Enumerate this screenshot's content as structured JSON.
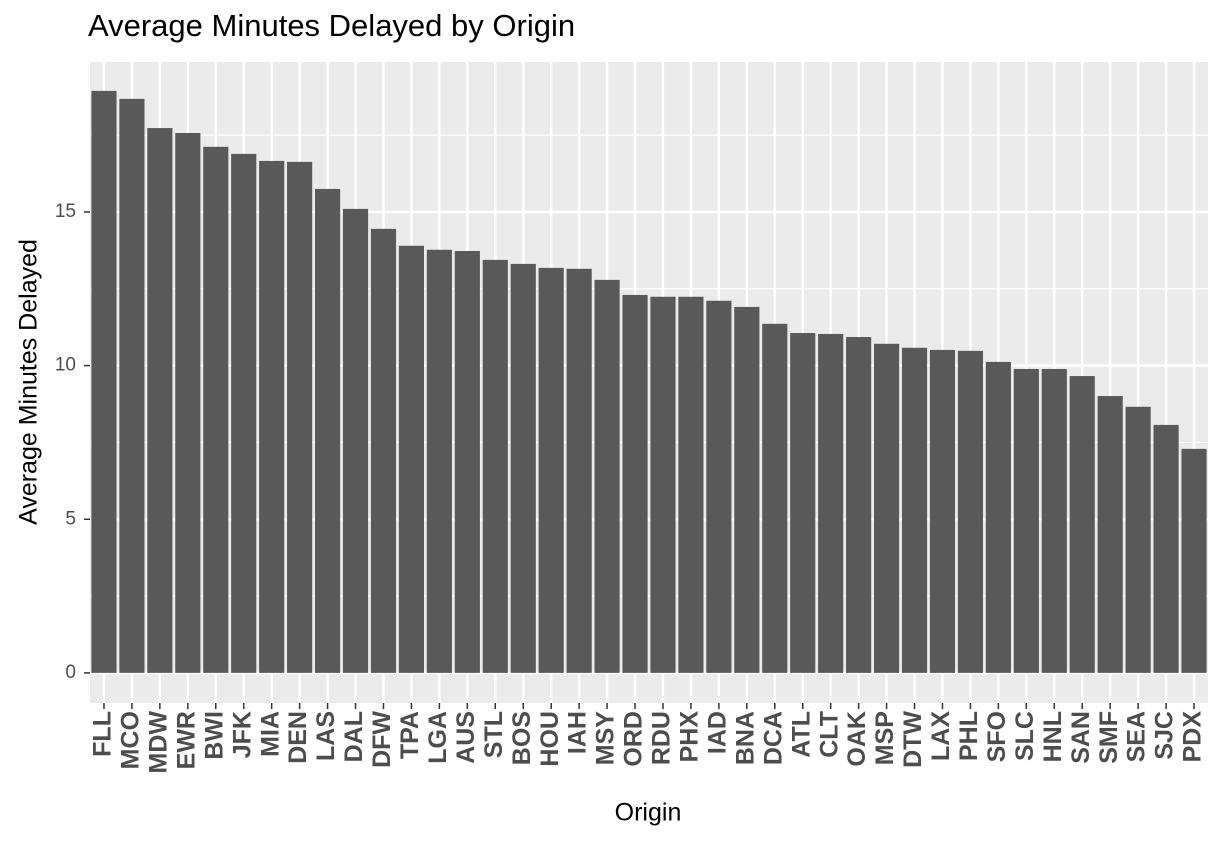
{
  "chart_data": {
    "type": "bar",
    "title": "Average Minutes Delayed by Origin",
    "x_label": "Origin",
    "y_label": "Average Minutes Delayed",
    "categories": [
      "FLL",
      "MCO",
      "MDW",
      "EWR",
      "BWI",
      "JFK",
      "MIA",
      "DEN",
      "LAS",
      "DAL",
      "DFW",
      "TPA",
      "LGA",
      "AUS",
      "STL",
      "BOS",
      "HOU",
      "IAH",
      "MSY",
      "ORD",
      "RDU",
      "PHX",
      "IAD",
      "BNA",
      "DCA",
      "ATL",
      "CLT",
      "OAK",
      "MSP",
      "DTW",
      "LAX",
      "PHL",
      "SFO",
      "SLC",
      "HNL",
      "SAN",
      "SMF",
      "SEA",
      "SJC",
      "PDX"
    ],
    "values": [
      18.94,
      18.68,
      17.73,
      17.57,
      17.12,
      16.89,
      16.66,
      16.63,
      15.75,
      15.1,
      14.45,
      13.9,
      13.77,
      13.73,
      13.44,
      13.31,
      13.18,
      13.15,
      12.79,
      12.3,
      12.24,
      12.24,
      12.11,
      11.91,
      11.36,
      11.06,
      11.03,
      10.93,
      10.71,
      10.58,
      10.51,
      10.48,
      10.12,
      9.89,
      9.89,
      9.66,
      9.01,
      8.66,
      8.07,
      7.29
    ],
    "color": "#595959",
    "ylim": [
      -0.98,
      19.88
    ],
    "yticks": [
      0,
      5,
      10,
      15
    ],
    "grid": true
  }
}
